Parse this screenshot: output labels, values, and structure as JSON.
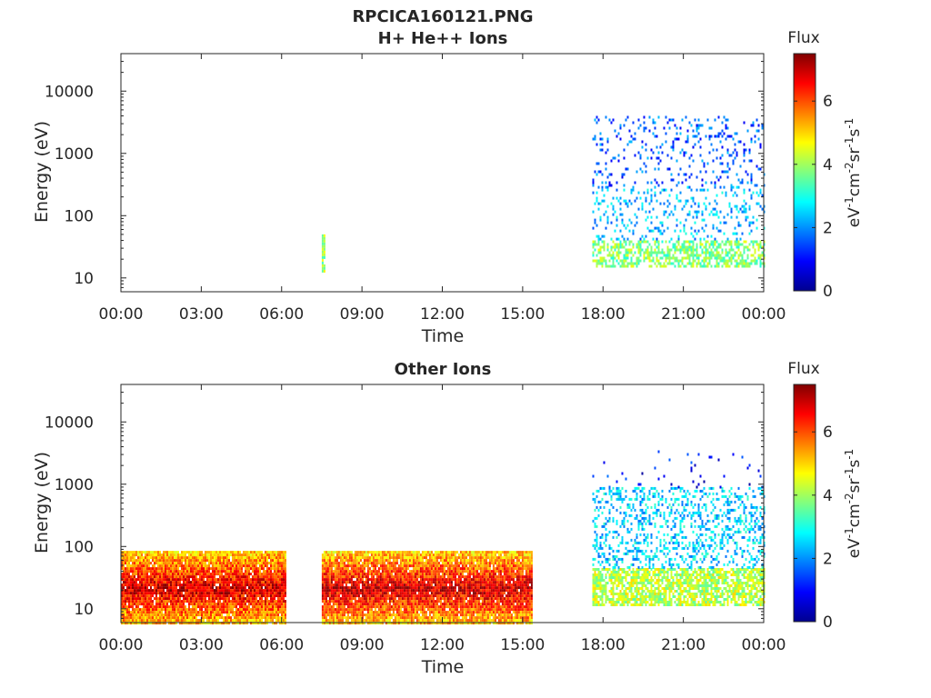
{
  "figure": {
    "title_line1": "RPCICA160121.PNG"
  },
  "chart_data": [
    {
      "type": "heatmap",
      "title": "H+ He++ Ions",
      "xlabel": "Time",
      "ylabel": "Energy (eV)",
      "y_scale": "log",
      "ylim": [
        6,
        40000
      ],
      "x_ticks": [
        "00:00",
        "03:00",
        "06:00",
        "09:00",
        "12:00",
        "15:00",
        "18:00",
        "21:00",
        "00:00"
      ],
      "xlim_hours": [
        0,
        24
      ],
      "y_ticks": [
        {
          "value": 10,
          "label": "10"
        },
        {
          "value": 100,
          "label": "100"
        },
        {
          "value": 1000,
          "label": "1000"
        },
        {
          "value": 10000,
          "label": "10000"
        }
      ],
      "colorbar": {
        "title": "Flux",
        "range": [
          0,
          7.5
        ],
        "ticks": [
          {
            "value": 0,
            "label": "0"
          },
          {
            "value": 2,
            "label": "2"
          },
          {
            "value": 4,
            "label": "4"
          },
          {
            "value": 6,
            "label": "6"
          }
        ],
        "unit_label": "eV-1cm-2sr-1s-1",
        "colormap": "jet"
      },
      "regions": [
        {
          "t_start": 7.5,
          "t_end": 7.6,
          "e_min": 13,
          "e_max": 50,
          "flux_level": 4.0,
          "density": 0.9
        },
        {
          "t_start": 17.6,
          "t_end": 24.0,
          "e_min": 15,
          "e_max": 40,
          "flux_level": 3.8,
          "density": 0.55
        },
        {
          "t_start": 17.6,
          "t_end": 24.0,
          "e_min": 40,
          "e_max": 300,
          "flux_level": 2.3,
          "density": 0.18
        },
        {
          "t_start": 17.6,
          "t_end": 24.0,
          "e_min": 300,
          "e_max": 4000,
          "flux_level": 1.6,
          "density": 0.14
        }
      ]
    },
    {
      "type": "heatmap",
      "title": "Other Ions",
      "xlabel": "Time",
      "ylabel": "Energy (eV)",
      "y_scale": "log",
      "ylim": [
        6,
        40000
      ],
      "x_ticks": [
        "00:00",
        "03:00",
        "06:00",
        "09:00",
        "12:00",
        "15:00",
        "18:00",
        "21:00",
        "00:00"
      ],
      "xlim_hours": [
        0,
        24
      ],
      "y_ticks": [
        {
          "value": 10,
          "label": "10"
        },
        {
          "value": 100,
          "label": "100"
        },
        {
          "value": 1000,
          "label": "1000"
        },
        {
          "value": 10000,
          "label": "10000"
        }
      ],
      "colorbar": {
        "title": "Flux",
        "range": [
          0,
          7.5
        ],
        "ticks": [
          {
            "value": 0,
            "label": "0"
          },
          {
            "value": 2,
            "label": "2"
          },
          {
            "value": 4,
            "label": "4"
          },
          {
            "value": 6,
            "label": "6"
          }
        ],
        "unit_label": "eV-1cm-2sr-1s-1",
        "colormap": "jet"
      },
      "regions": [
        {
          "t_start": 0.0,
          "t_end": 6.15,
          "e_min": 6,
          "e_max": 85,
          "flux_level": 5.5,
          "density": 0.95,
          "peak_energy": 22
        },
        {
          "t_start": 7.5,
          "t_end": 15.35,
          "e_min": 6,
          "e_max": 85,
          "flux_level": 5.5,
          "density": 0.95,
          "peak_energy": 22
        },
        {
          "t_start": 17.6,
          "t_end": 24.0,
          "e_min": 12,
          "e_max": 45,
          "flux_level": 4.2,
          "density": 0.75
        },
        {
          "t_start": 17.6,
          "t_end": 24.0,
          "e_min": 45,
          "e_max": 900,
          "flux_level": 2.5,
          "density": 0.3
        },
        {
          "t_start": 17.6,
          "t_end": 24.0,
          "e_min": 900,
          "e_max": 3500,
          "flux_level": 1.0,
          "density": 0.03
        }
      ]
    }
  ]
}
